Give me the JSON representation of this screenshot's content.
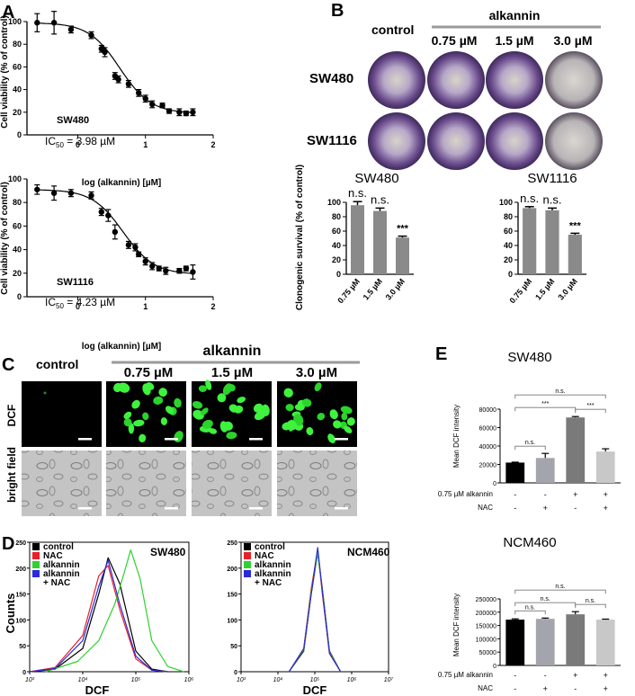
{
  "panels": {
    "a": "A",
    "b": "B",
    "c": "C",
    "d": "D",
    "e": "E"
  },
  "panel_a": {
    "top": {
      "cell": "SW480",
      "ic50_prefix": "IC",
      "ic50_sub": "50",
      "ic50_value": " = 3.98 µM",
      "ylabel": "Cell viability (% of control)",
      "xlabel": "log (alkannin) [µM]"
    },
    "bottom": {
      "cell": "SW1116",
      "ic50_prefix": "IC",
      "ic50_sub": "50",
      "ic50_value": " = 4.23 µM",
      "ylabel": "Cell viability (% of control)",
      "xlabel": "log (alkannin) [µM]"
    }
  },
  "panel_b": {
    "alkannin": "alkannin",
    "control": "control",
    "doses": [
      "0.75 µM",
      "1.5 µM",
      "3.0 µM"
    ],
    "rows": [
      "SW480",
      "SW1116"
    ],
    "ylabel": "Clonogenic survival (% of control)"
  },
  "panel_c": {
    "control": "control",
    "alkannin": "alkannin",
    "doses": [
      "0.75 µM",
      "1.5 µM",
      "3.0 µM"
    ],
    "row1": "DCF",
    "row2": "bright field"
  },
  "panel_d": {
    "xlabel": "DCF",
    "ylabel": "Counts",
    "legend": [
      "control",
      "NAC",
      "alkannin",
      "alkannin",
      "+ NAC"
    ],
    "left_cell": "SW480",
    "right_cell": "NCM460"
  },
  "panel_e": {
    "ylabel": "Mean DCF intensity",
    "row_alk": "0.75 µM alkannin",
    "row_nac": "NAC",
    "alk_signs": [
      "-",
      "-",
      "+",
      "+"
    ],
    "nac_signs": [
      "-",
      "+",
      "-",
      "+"
    ]
  },
  "colors": {
    "control": "#000000",
    "nac": "#e8202a",
    "alkannin": "#2fd12f",
    "alk_nac": "#2b2bd8",
    "bar": "#8a8a8a"
  },
  "chart_data": [
    {
      "type": "scatter",
      "title": "SW480",
      "xlabel": "log (alkannin) [µM]",
      "ylabel": "Cell viability (% of control)",
      "xlim": [
        -0.75,
        2
      ],
      "ylim": [
        0,
        100
      ],
      "xticks": [
        0,
        1,
        2
      ],
      "yticks": [
        0,
        20,
        40,
        60,
        80,
        100
      ],
      "x": [
        -0.6,
        -0.35,
        -0.1,
        0.2,
        0.35,
        0.4,
        0.55,
        0.6,
        0.75,
        0.9,
        1.0,
        1.1,
        1.25,
        1.35,
        1.5,
        1.6,
        1.7
      ],
      "y": [
        99,
        99,
        93,
        88,
        76,
        73,
        52,
        49,
        45,
        37,
        32,
        27,
        26,
        21,
        20,
        19,
        20
      ],
      "yerr": [
        8,
        10,
        3,
        3,
        3,
        4,
        3,
        3,
        3,
        3,
        3,
        3,
        2,
        2,
        3,
        2,
        3
      ]
    },
    {
      "type": "scatter",
      "title": "SW1116",
      "xlabel": "log (alkannin) [µM]",
      "ylabel": "Cell viability (% of control)",
      "xlim": [
        -0.75,
        2
      ],
      "ylim": [
        0,
        100
      ],
      "xticks": [
        0,
        1,
        2
      ],
      "yticks": [
        0,
        20,
        40,
        60,
        80,
        100
      ],
      "x": [
        -0.6,
        -0.35,
        -0.1,
        0.2,
        0.35,
        0.45,
        0.55,
        0.75,
        0.85,
        0.9,
        1.0,
        1.1,
        1.2,
        1.3,
        1.5,
        1.6,
        1.7
      ],
      "y": [
        91,
        88,
        88,
        86,
        72,
        69,
        55,
        44,
        42,
        36,
        30,
        26,
        24,
        22,
        22,
        24,
        21
      ],
      "yerr": [
        4,
        6,
        3,
        3,
        3,
        5,
        6,
        3,
        3,
        2,
        3,
        3,
        2,
        3,
        2,
        2,
        6
      ]
    },
    {
      "type": "bar",
      "title": "SW480",
      "categories": [
        "0.75 µM",
        "1.5 µM",
        "3.0 µM"
      ],
      "values": [
        96,
        88,
        51
      ],
      "yerr": [
        5,
        4,
        2
      ],
      "annotations": [
        "n.s.",
        "n.s.",
        "***"
      ],
      "ylabel": "Clonogenic survival (% of control)",
      "ylim": [
        0,
        100
      ],
      "yticks": [
        0,
        20,
        40,
        60,
        80,
        100
      ]
    },
    {
      "type": "bar",
      "title": "SW1116",
      "categories": [
        "0.75 µM",
        "1.5 µM",
        "3.0 µM"
      ],
      "values": [
        92,
        89,
        55
      ],
      "yerr": [
        2,
        3,
        2
      ],
      "annotations": [
        "n.s.",
        "n.s.",
        "***"
      ],
      "ylim": [
        0,
        100
      ],
      "yticks": [
        0,
        20,
        40,
        60,
        80,
        100
      ]
    },
    {
      "type": "line",
      "title": "SW480",
      "xlabel": "DCF",
      "ylabel": "Counts",
      "xlim": [
        1000,
        1000000
      ],
      "ylim": [
        0,
        250
      ],
      "xticks": [
        "10³",
        "10⁴",
        "10⁵",
        "10⁶"
      ],
      "yticks": [
        0,
        50,
        100,
        150,
        200,
        250
      ],
      "series": [
        {
          "name": "control",
          "x": [
            1000,
            3000,
            10000,
            20000,
            30000,
            50000,
            100000,
            200000,
            400000
          ],
          "values": [
            0,
            5,
            45,
            150,
            220,
            170,
            40,
            5,
            0
          ]
        },
        {
          "name": "NAC",
          "x": [
            1000,
            3000,
            10000,
            20000,
            30000,
            50000,
            100000,
            200000,
            400000
          ],
          "values": [
            0,
            8,
            70,
            185,
            205,
            120,
            25,
            3,
            0
          ]
        },
        {
          "name": "alkannin",
          "x": [
            2000,
            8000,
            20000,
            40000,
            60000,
            80000,
            120000,
            200000,
            400000,
            800000
          ],
          "values": [
            0,
            20,
            60,
            130,
            190,
            235,
            180,
            60,
            10,
            0
          ]
        },
        {
          "name": "alkannin + NAC",
          "x": [
            1000,
            3000,
            10000,
            20000,
            30000,
            50000,
            100000,
            200000,
            400000
          ],
          "values": [
            0,
            6,
            60,
            165,
            215,
            130,
            30,
            3,
            0
          ]
        }
      ]
    },
    {
      "type": "line",
      "title": "NCM460",
      "xlabel": "DCF",
      "ylabel": "",
      "xlim": [
        1000,
        10000000
      ],
      "ylim": [
        0,
        250
      ],
      "xticks": [
        "10³",
        "10⁴",
        "10⁵",
        "10⁶",
        "10⁷"
      ],
      "yticks": [
        0,
        50,
        100,
        150,
        200,
        250
      ],
      "series": [
        {
          "name": "control",
          "x": [
            20000,
            50000,
            80000,
            120000,
            160000,
            250000,
            500000
          ],
          "values": [
            0,
            40,
            150,
            230,
            160,
            40,
            0
          ]
        },
        {
          "name": "NAC",
          "x": [
            20000,
            50000,
            80000,
            120000,
            160000,
            250000,
            500000
          ],
          "values": [
            0,
            45,
            160,
            235,
            150,
            35,
            0
          ]
        },
        {
          "name": "alkannin",
          "x": [
            20000,
            50000,
            80000,
            120000,
            160000,
            250000,
            500000
          ],
          "values": [
            0,
            42,
            155,
            230,
            158,
            38,
            0
          ]
        },
        {
          "name": "alkannin + NAC",
          "x": [
            20000,
            50000,
            80000,
            120000,
            160000,
            250000,
            500000
          ],
          "values": [
            0,
            44,
            150,
            240,
            155,
            36,
            0
          ]
        }
      ]
    },
    {
      "type": "bar",
      "title": "SW480",
      "ylabel": "Mean DCF intensity",
      "ylim": [
        0,
        80000
      ],
      "yticks": [
        0,
        20000,
        40000,
        60000,
        80000
      ],
      "categories": [
        "1",
        "2",
        "3",
        "4"
      ],
      "values": [
        22000,
        27000,
        71000,
        34000
      ],
      "yerr": [
        500,
        5000,
        1000,
        3000
      ],
      "colors": [
        "#000000",
        "#a4a4ac",
        "#7a7a7a",
        "#c8c8c8"
      ],
      "comparisons": [
        {
          "pair": [
            1,
            2
          ],
          "label": "n.s."
        },
        {
          "pair": [
            1,
            3
          ],
          "label": "***"
        },
        {
          "pair": [
            3,
            4
          ],
          "label": "***"
        },
        {
          "pair": [
            1,
            4
          ],
          "label": "n.s."
        }
      ]
    },
    {
      "type": "bar",
      "title": "NCM460",
      "ylabel": "Mean DCF intensity",
      "ylim": [
        0,
        250000
      ],
      "yticks": [
        0,
        50000,
        100000,
        150000,
        200000,
        250000
      ],
      "categories": [
        "1",
        "2",
        "3",
        "4"
      ],
      "values": [
        172000,
        175000,
        192000,
        172000
      ],
      "yerr": [
        3000,
        3000,
        10000,
        2000
      ],
      "colors": [
        "#000000",
        "#a4a4ac",
        "#7a7a7a",
        "#c8c8c8"
      ],
      "comparisons": [
        {
          "pair": [
            1,
            2
          ],
          "label": "n.s."
        },
        {
          "pair": [
            1,
            3
          ],
          "label": "n.s."
        },
        {
          "pair": [
            3,
            4
          ],
          "label": "n.s."
        },
        {
          "pair": [
            1,
            4
          ],
          "label": "n.s."
        }
      ]
    }
  ]
}
